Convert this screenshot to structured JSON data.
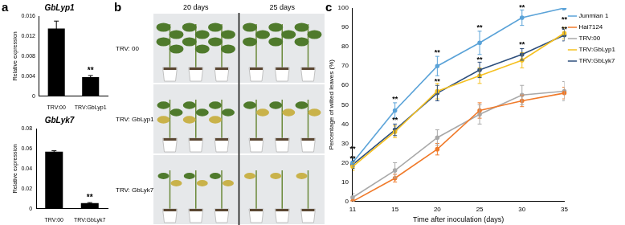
{
  "chart_data": [
    {
      "panel": "a",
      "type": "bar",
      "title": "GbLyp1",
      "y_label": "Relative expression",
      "categories": [
        "TRV:00",
        "TRV:GbLyp1"
      ],
      "values": [
        0.0135,
        0.0038
      ],
      "errors": [
        0.0015,
        0.0003
      ],
      "color": "#000000",
      "ylim": [
        0,
        0.016
      ],
      "yticks": [
        0,
        0.004,
        0.008,
        0.012,
        0.016
      ],
      "grid": false,
      "annotations": [
        {
          "text": "**",
          "category": "TRV:GbLyp1"
        }
      ]
    },
    {
      "type": "bar",
      "title": "GbLyk7",
      "y_label": "Relative expression",
      "categories": [
        "TRV:00",
        "TRV:GbLyk7"
      ],
      "values": [
        0.057,
        0.0055
      ],
      "errors": [
        0.0008,
        0.0005
      ],
      "color": "#000000",
      "ylim": [
        0,
        0.08
      ],
      "yticks": [
        0,
        0.02,
        0.04,
        0.06,
        0.08
      ],
      "grid": false,
      "annotations": [
        {
          "text": "**",
          "category": "TRV:GbLyk7"
        }
      ]
    },
    {
      "panel": "c",
      "type": "line",
      "x_label": "Time after inoculation (days)",
      "y_label": "Percentage of wilted leaves (%)",
      "categories": [
        11,
        15,
        20,
        25,
        30,
        35
      ],
      "ylim": [
        0,
        100
      ],
      "yticks": [
        0,
        10,
        20,
        30,
        40,
        50,
        60,
        70,
        80,
        90,
        100
      ],
      "grid": false,
      "legend": "right",
      "marker": "circle",
      "series": [
        {
          "name": "Junmian 1",
          "color": "#5ba3d8",
          "values": [
            20,
            47,
            70,
            82,
            95,
            100
          ],
          "errors": [
            2,
            4,
            5,
            6,
            4,
            1
          ]
        },
        {
          "name": "Hai7124",
          "color": "#f07a2a",
          "values": [
            0,
            12,
            27,
            47,
            52,
            56
          ],
          "errors": [
            1,
            2,
            3,
            4,
            3,
            3
          ]
        },
        {
          "name": "TRV:00",
          "color": "#a9a9a9",
          "values": [
            2,
            16,
            33,
            45,
            55,
            57
          ],
          "errors": [
            2,
            4,
            4,
            5,
            5,
            5
          ]
        },
        {
          "name": "TRV:GbLyp1",
          "color": "#f5c020",
          "values": [
            18,
            36,
            57,
            65,
            73,
            87
          ],
          "errors": [
            2,
            3,
            4,
            4,
            4,
            3
          ]
        },
        {
          "name": "TRV:GbLyk7",
          "color": "#2e4f7c",
          "values": [
            19,
            37,
            56,
            68,
            76,
            86
          ],
          "errors": [
            2,
            3,
            4,
            4,
            3,
            3
          ]
        }
      ],
      "annotations": [
        {
          "text": "**",
          "x": 11,
          "y": 27
        },
        {
          "text": "**",
          "x": 11,
          "y": 22
        },
        {
          "text": "**",
          "x": 15,
          "y": 53
        },
        {
          "text": "**",
          "x": 15,
          "y": 42
        },
        {
          "text": "**",
          "x": 20,
          "y": 77
        },
        {
          "text": "**",
          "x": 20,
          "y": 62
        },
        {
          "text": "**",
          "x": 25,
          "y": 90
        },
        {
          "text": "**",
          "x": 25,
          "y": 73
        },
        {
          "text": "**",
          "x": 30,
          "y": 100
        },
        {
          "text": "**",
          "x": 30,
          "y": 81
        },
        {
          "text": "**",
          "x": 35,
          "y": 94
        },
        {
          "text": "**",
          "x": 35,
          "y": 89
        }
      ]
    }
  ],
  "photo_panel": {
    "panel": "b",
    "columns": [
      "20 days",
      "25 days"
    ],
    "rows": [
      "TRV: 00",
      "TRV: GbLyp1",
      "TRV: GbLyk7"
    ]
  }
}
